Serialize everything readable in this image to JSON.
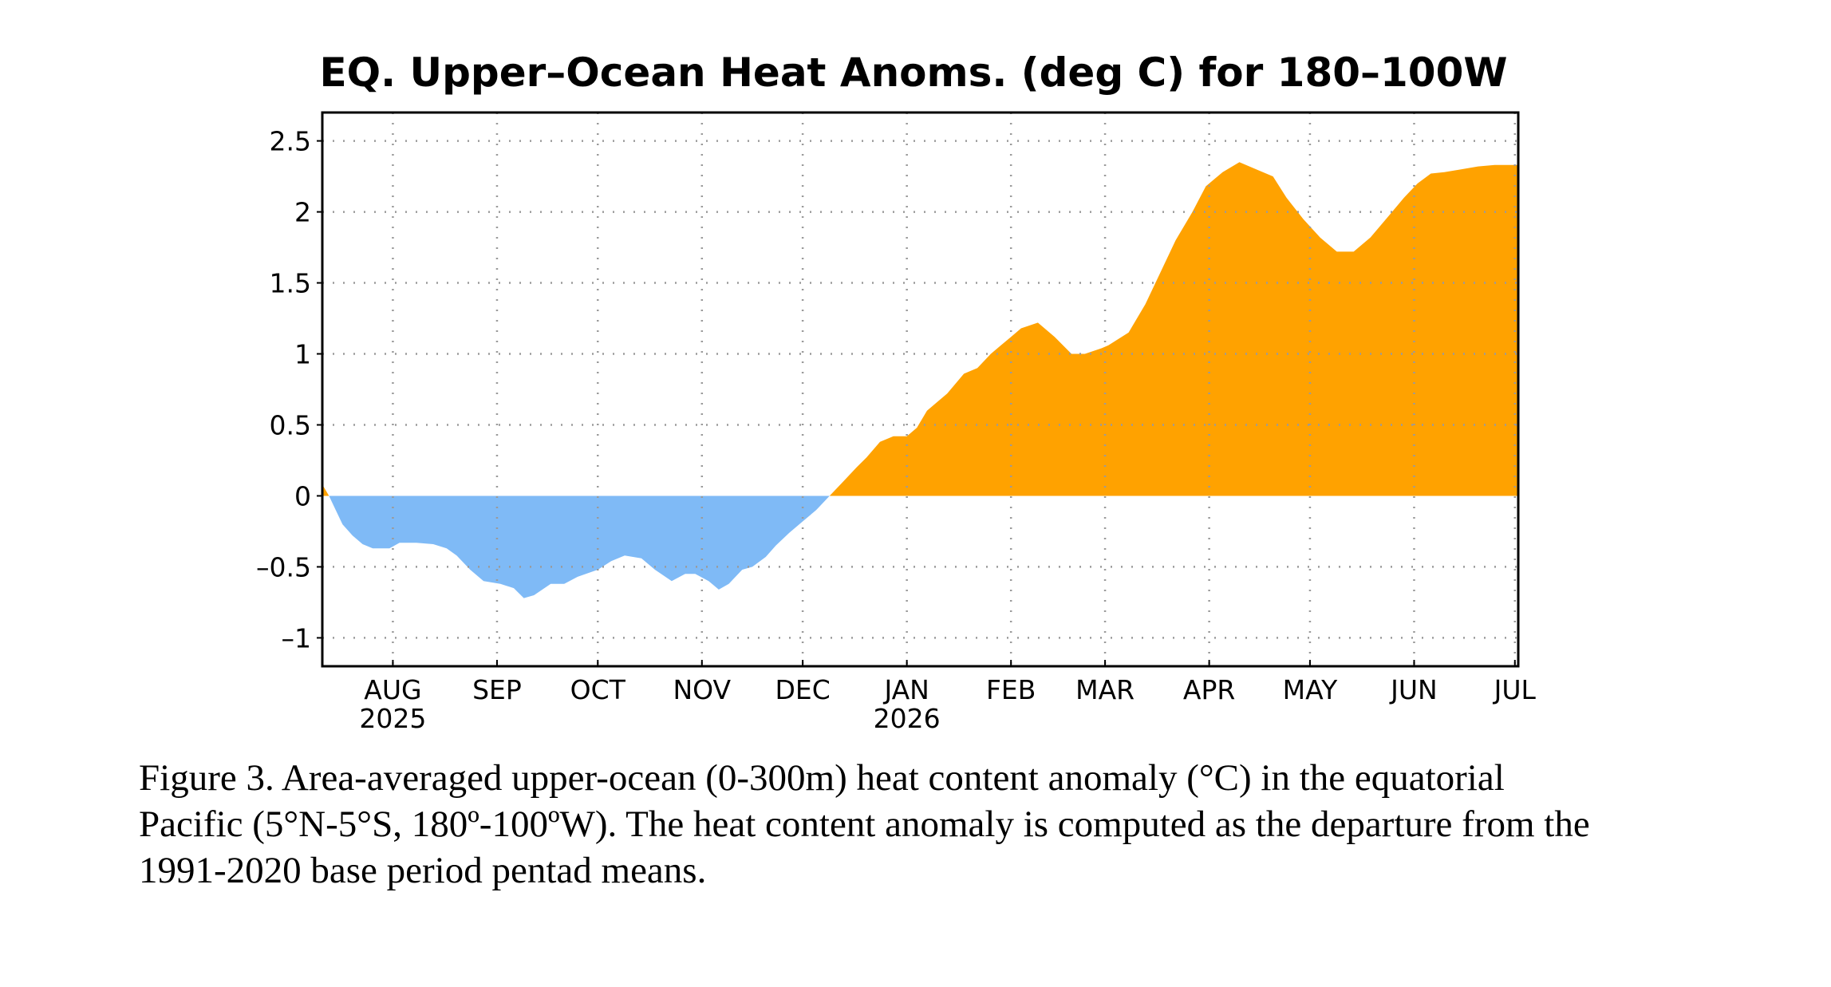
{
  "chart_data": {
    "type": "area",
    "title": "EQ. Upper–Ocean Heat Anoms. (deg C) for 180–100W",
    "xlabel": "",
    "ylabel": "",
    "ylim": [
      -1.2,
      2.7
    ],
    "xlim": [
      "2025-07-11",
      "2026-07-02"
    ],
    "y_ticks": [
      {
        "value": 2.5,
        "label": "2.5"
      },
      {
        "value": 2,
        "label": "2"
      },
      {
        "value": 1.5,
        "label": "1.5"
      },
      {
        "value": 1,
        "label": "1"
      },
      {
        "value": 0.5,
        "label": "0.5"
      },
      {
        "value": 0,
        "label": "0"
      },
      {
        "value": -0.5,
        "label": "–0.5"
      },
      {
        "value": -1,
        "label": "–1"
      }
    ],
    "x_ticks": [
      {
        "date": "2025-08-01",
        "label": "AUG",
        "year_label": "2025"
      },
      {
        "date": "2025-09-01",
        "label": "SEP",
        "year_label": ""
      },
      {
        "date": "2025-10-01",
        "label": "OCT",
        "year_label": ""
      },
      {
        "date": "2025-11-01",
        "label": "NOV",
        "year_label": ""
      },
      {
        "date": "2025-12-01",
        "label": "DEC",
        "year_label": ""
      },
      {
        "date": "2026-01-01",
        "label": "JAN",
        "year_label": "2026"
      },
      {
        "date": "2026-02-01",
        "label": "FEB",
        "year_label": ""
      },
      {
        "date": "2026-03-01",
        "label": "MAR",
        "year_label": ""
      },
      {
        "date": "2026-04-01",
        "label": "APR",
        "year_label": ""
      },
      {
        "date": "2026-05-01",
        "label": "MAY",
        "year_label": ""
      },
      {
        "date": "2026-06-01",
        "label": "JUN",
        "year_label": ""
      },
      {
        "date": "2026-07-01",
        "label": "JUL",
        "year_label": ""
      }
    ],
    "grid": true,
    "colors": {
      "positive": "#FFA200",
      "negative": "#7FBAF6",
      "frame": "#000000",
      "grid": "#9a9a9a"
    },
    "series": [
      {
        "x": [
          "2025-07-11",
          "2025-07-13",
          "2025-07-15",
          "2025-07-17",
          "2025-07-20",
          "2025-07-23",
          "2025-07-26",
          "2025-07-31",
          "2025-08-03",
          "2025-08-08",
          "2025-08-13",
          "2025-08-17",
          "2025-08-20",
          "2025-08-24",
          "2025-08-28",
          "2025-09-02",
          "2025-09-06",
          "2025-09-09",
          "2025-09-12",
          "2025-09-17",
          "2025-09-21",
          "2025-09-25",
          "2025-10-01",
          "2025-10-05",
          "2025-10-09",
          "2025-10-14",
          "2025-10-18",
          "2025-10-23",
          "2025-10-27",
          "2025-10-30",
          "2025-11-03",
          "2025-11-06",
          "2025-11-09",
          "2025-11-13",
          "2025-11-16",
          "2025-11-20",
          "2025-11-23",
          "2025-11-27",
          "2025-12-01",
          "2025-12-05",
          "2025-12-09",
          "2025-12-13",
          "2025-12-17",
          "2025-12-20",
          "2025-12-24",
          "2025-12-28",
          "2026-01-01",
          "2026-01-04",
          "2026-01-07",
          "2026-01-13",
          "2026-01-18",
          "2026-01-22",
          "2026-01-26",
          "2026-01-29",
          "2026-02-01",
          "2026-02-04",
          "2026-02-09",
          "2026-02-14",
          "2026-02-19",
          "2026-02-23",
          "2026-02-28",
          "2026-03-02",
          "2026-03-08",
          "2026-03-13",
          "2026-03-18",
          "2026-03-22",
          "2026-03-27",
          "2026-03-31",
          "2026-04-05",
          "2026-04-10",
          "2026-04-15",
          "2026-04-20",
          "2026-04-24",
          "2026-04-29",
          "2026-05-04",
          "2026-05-09",
          "2026-05-14",
          "2026-05-19",
          "2026-05-24",
          "2026-05-29",
          "2026-06-02",
          "2026-06-06",
          "2026-06-10",
          "2026-06-15",
          "2026-06-20",
          "2026-06-25",
          "2026-06-30",
          "2026-07-02"
        ],
        "y": [
          0.08,
          0.0,
          -0.1,
          -0.2,
          -0.28,
          -0.34,
          -0.37,
          -0.37,
          -0.33,
          -0.33,
          -0.34,
          -0.37,
          -0.42,
          -0.52,
          -0.6,
          -0.62,
          -0.65,
          -0.72,
          -0.7,
          -0.62,
          -0.62,
          -0.57,
          -0.52,
          -0.46,
          -0.42,
          -0.44,
          -0.52,
          -0.6,
          -0.55,
          -0.55,
          -0.6,
          -0.66,
          -0.62,
          -0.52,
          -0.5,
          -0.43,
          -0.35,
          -0.26,
          -0.18,
          -0.1,
          0.0,
          0.1,
          0.2,
          0.27,
          0.38,
          0.42,
          0.42,
          0.48,
          0.6,
          0.72,
          0.86,
          0.9,
          1.0,
          1.06,
          1.12,
          1.18,
          1.22,
          1.12,
          1.0,
          1.0,
          1.04,
          1.06,
          1.15,
          1.35,
          1.6,
          1.8,
          2.0,
          2.18,
          2.28,
          2.35,
          2.3,
          2.25,
          2.1,
          1.95,
          1.82,
          1.72,
          1.72,
          1.82,
          1.96,
          2.1,
          2.2,
          2.27,
          2.28,
          2.3,
          2.32,
          2.33,
          2.33,
          2.33
        ]
      }
    ]
  },
  "caption": {
    "lines": [
      "Figure 3. Area-averaged upper-ocean (0-300m) heat content anomaly (°C) in the equatorial",
      "Pacific (5°N-5°S, 180º-100ºW). The heat content anomaly is computed as the departure from the",
      "1991-2020 base period pentad means."
    ]
  }
}
